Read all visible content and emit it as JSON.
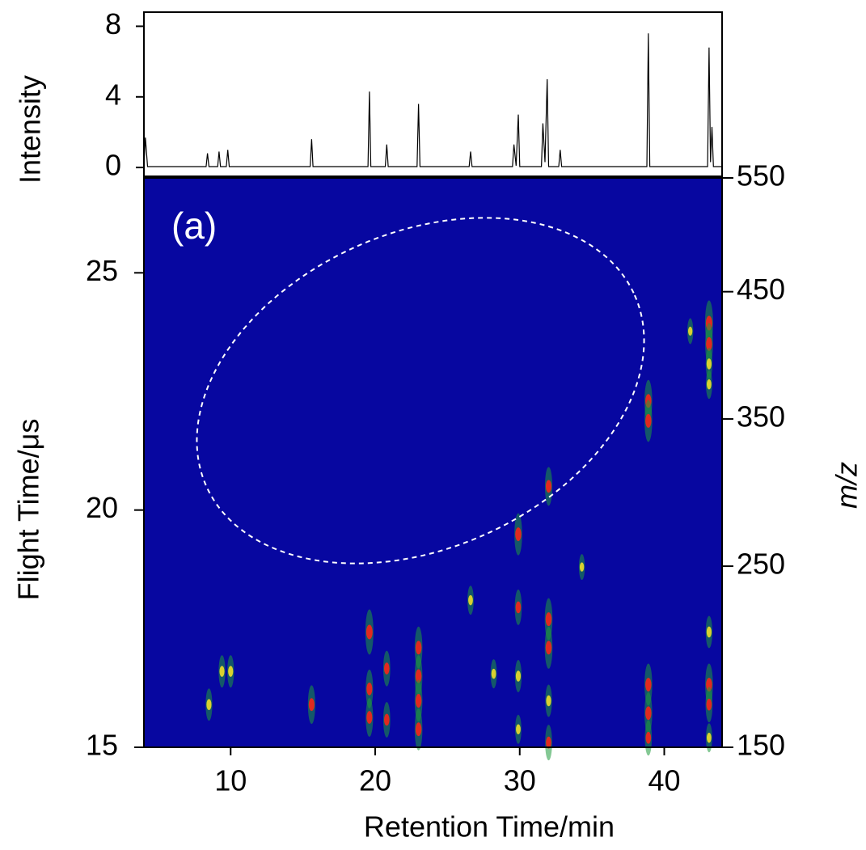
{
  "chart_data": [
    {
      "type": "line",
      "ylabel": "Intensity",
      "color": "#000000",
      "xlim": [
        4,
        44
      ],
      "ylim": [
        -0.5,
        8.8
      ],
      "yticks": [
        0,
        4,
        8
      ],
      "x": [
        4.0,
        4.1,
        4.25,
        8.3,
        8.4,
        8.5,
        9.1,
        9.2,
        9.3,
        9.7,
        9.8,
        9.9,
        15.5,
        15.6,
        15.7,
        19.5,
        19.6,
        19.7,
        20.7,
        20.8,
        20.9,
        22.9,
        23.0,
        23.1,
        26.5,
        26.6,
        26.7,
        29.5,
        29.6,
        29.75,
        29.9,
        30.0,
        31.5,
        31.6,
        31.75,
        31.9,
        32.0,
        32.7,
        32.8,
        32.9,
        38.8,
        38.9,
        39.0,
        43.0,
        43.1,
        43.2,
        43.3,
        43.4,
        44.0
      ],
      "values": [
        0.1,
        1.7,
        0.05,
        0.05,
        0.8,
        0.05,
        0.05,
        0.9,
        0.05,
        0.05,
        1.0,
        0.05,
        0.05,
        1.6,
        0.05,
        0.05,
        4.3,
        0.05,
        0.05,
        1.3,
        0.05,
        0.05,
        3.6,
        0.05,
        0.05,
        0.9,
        0.05,
        0.05,
        1.3,
        0.1,
        3.0,
        0.05,
        0.05,
        2.5,
        0.3,
        5.0,
        0.05,
        0.05,
        1.0,
        0.05,
        0.05,
        7.6,
        0.05,
        0.05,
        6.8,
        0.3,
        2.3,
        0.05,
        0.05
      ]
    },
    {
      "type": "heatmap",
      "annotation": "(a)",
      "xlabel": "Retention Time/min",
      "ylabel": "Flight Time/μs",
      "y2label": "m/z",
      "background": "#0707a0",
      "colors": [
        "#1f9a3c",
        "#d8d030",
        "#e02a20"
      ],
      "xlim": [
        4,
        44
      ],
      "xticks": [
        10,
        20,
        30,
        40
      ],
      "ylim": [
        15,
        27
      ],
      "yticks": [
        15,
        20,
        25
      ],
      "y2lim": [
        150,
        550
      ],
      "y2scale": "sqrt",
      "y2ticks": [
        150,
        250,
        350,
        450,
        550
      ],
      "x": [
        43.1,
        43.1,
        43.1,
        43.1,
        43.1,
        43.1,
        43.1,
        43.1,
        38.9,
        38.9,
        38.9,
        38.9,
        38.9,
        32.0,
        32.0,
        32.0,
        32.0,
        32.0,
        29.9,
        29.9,
        29.9,
        29.9,
        23.0,
        23.0,
        23.0,
        23.0,
        19.6,
        19.6,
        19.6,
        20.8,
        20.8,
        15.6,
        8.5,
        9.4,
        10.0,
        26.6,
        28.2,
        34.3,
        41.8
      ],
      "y": [
        23.94,
        23.5,
        23.08,
        22.65,
        17.43,
        16.32,
        15.9,
        15.2,
        22.3,
        21.88,
        16.32,
        15.72,
        15.2,
        20.5,
        17.7,
        17.1,
        15.98,
        15.1,
        19.49,
        17.95,
        16.5,
        15.38,
        17.1,
        16.5,
        15.98,
        15.38,
        17.43,
        16.23,
        15.63,
        16.66,
        15.58,
        15.9,
        15.9,
        16.6,
        16.6,
        18.1,
        16.55,
        18.8,
        23.77
      ],
      "values": [
        9,
        8,
        5,
        4,
        5,
        8,
        6,
        4,
        8,
        8,
        8,
        8,
        6,
        7,
        8,
        8,
        5,
        6,
        8,
        6,
        5,
        4,
        8,
        8,
        8,
        8,
        9,
        7,
        7,
        6,
        6,
        7,
        5,
        5,
        5,
        4,
        4,
        3,
        3
      ]
    }
  ]
}
